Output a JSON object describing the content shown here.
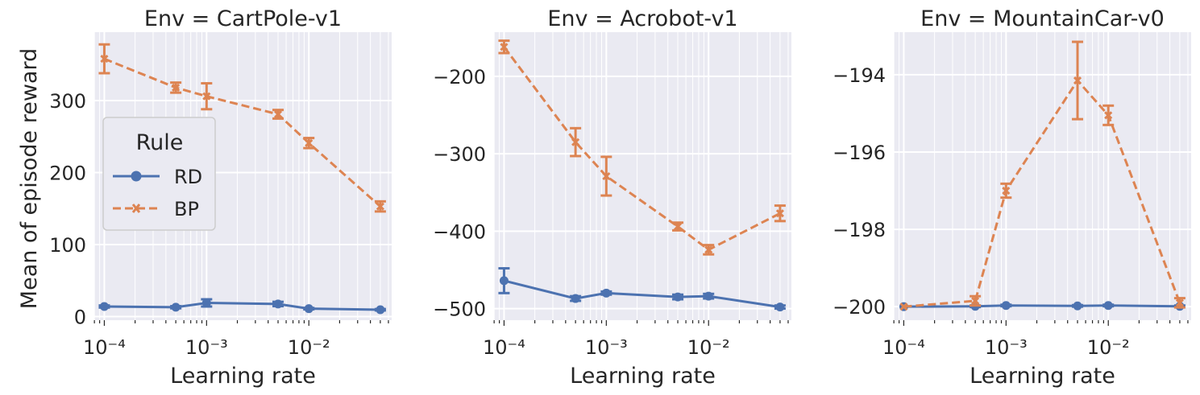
{
  "chart_data": {
    "type": "line",
    "xscale": "log",
    "ylabel": "Mean of episode reward",
    "legend": {
      "title": "Rule",
      "placement": "center-left of first panel",
      "entries": [
        "RD",
        "BP"
      ]
    },
    "colors": {
      "RD": "#4c72b0",
      "BP": "#dd8452"
    },
    "x_tick_labels": [
      "10⁻⁴",
      "10⁻³",
      "10⁻²"
    ],
    "x": [
      0.0001,
      0.0005,
      0.001,
      0.005,
      0.01,
      0.05
    ],
    "panels": [
      {
        "title": "Env = CartPole-v1",
        "xlabel": "Learning rate",
        "ylim": [
          -5,
          395
        ],
        "yticks": [
          0,
          100,
          200,
          300
        ],
        "series": [
          {
            "name": "RD",
            "values": [
              14,
              13,
              19,
              17.5,
              11,
              9.5
            ],
            "err": [
              1.5,
              1.5,
              5,
              3,
              1,
              1
            ]
          },
          {
            "name": "BP",
            "values": [
              358,
              318,
              306,
              281,
              241,
              153
            ],
            "err": [
              20,
              7,
              18,
              6,
              7,
              7
            ]
          }
        ]
      },
      {
        "title": "Env = Acrobot-v1",
        "xlabel": "Learning rate",
        "ylim": [
          -515,
          -143
        ],
        "yticks": [
          -200,
          -300,
          -400,
          -500
        ],
        "series": [
          {
            "name": "RD",
            "values": [
              -464,
              -487,
              -480,
              -485,
              -484,
              -498
            ],
            "err": [
              16,
              3,
              2,
              3,
              3,
              2
            ]
          },
          {
            "name": "BP",
            "values": [
              -162,
              -285,
              -329,
              -394,
              -424,
              -377
            ],
            "err": [
              8,
              18,
              25,
              5,
              6,
              10
            ]
          }
        ]
      },
      {
        "title": "Env = MountainCar-v0",
        "xlabel": "Learning rate",
        "ylim": [
          -200.35,
          -192.9
        ],
        "yticks": [
          -194,
          -196,
          -198,
          -200
        ],
        "series": [
          {
            "name": "RD",
            "values": [
              -200,
              -199.99,
              -199.97,
              -199.98,
              -199.97,
              -199.99
            ],
            "err": [
              0,
              0.02,
              0.02,
              0.02,
              0.02,
              0.02
            ]
          },
          {
            "name": "BP",
            "values": [
              -200,
              -199.85,
              -197,
              -194.15,
              -195.05,
              -199.9
            ],
            "err": [
              0,
              0.12,
              0.18,
              1,
              0.25,
              0.12
            ]
          }
        ]
      }
    ]
  }
}
